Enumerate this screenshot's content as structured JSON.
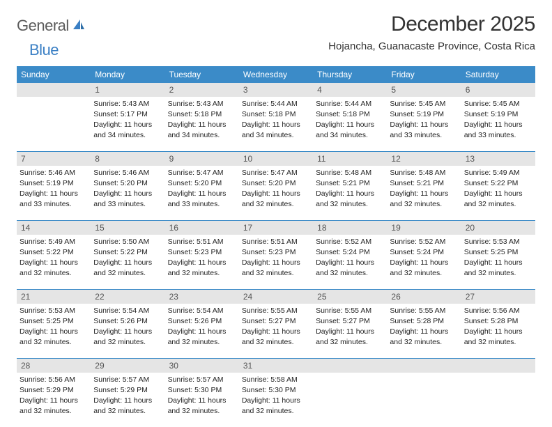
{
  "brand": {
    "part1": "General",
    "part2": "Blue"
  },
  "title": "December 2025",
  "location": "Hojancha, Guanacaste Province, Costa Rica",
  "colors": {
    "header_bg": "#3b8bc8",
    "header_text": "#ffffff",
    "daynum_bg": "#e5e5e5",
    "row_border": "#3b8bc8",
    "brand_gray": "#5a5a5a",
    "brand_blue": "#3a7fc4",
    "text": "#222222"
  },
  "day_labels": [
    "Sunday",
    "Monday",
    "Tuesday",
    "Wednesday",
    "Thursday",
    "Friday",
    "Saturday"
  ],
  "weeks": [
    [
      {
        "n": "",
        "sr": "",
        "ss": "",
        "dl": ""
      },
      {
        "n": "1",
        "sr": "Sunrise: 5:43 AM",
        "ss": "Sunset: 5:17 PM",
        "dl": "Daylight: 11 hours and 34 minutes."
      },
      {
        "n": "2",
        "sr": "Sunrise: 5:43 AM",
        "ss": "Sunset: 5:18 PM",
        "dl": "Daylight: 11 hours and 34 minutes."
      },
      {
        "n": "3",
        "sr": "Sunrise: 5:44 AM",
        "ss": "Sunset: 5:18 PM",
        "dl": "Daylight: 11 hours and 34 minutes."
      },
      {
        "n": "4",
        "sr": "Sunrise: 5:44 AM",
        "ss": "Sunset: 5:18 PM",
        "dl": "Daylight: 11 hours and 34 minutes."
      },
      {
        "n": "5",
        "sr": "Sunrise: 5:45 AM",
        "ss": "Sunset: 5:19 PM",
        "dl": "Daylight: 11 hours and 33 minutes."
      },
      {
        "n": "6",
        "sr": "Sunrise: 5:45 AM",
        "ss": "Sunset: 5:19 PM",
        "dl": "Daylight: 11 hours and 33 minutes."
      }
    ],
    [
      {
        "n": "7",
        "sr": "Sunrise: 5:46 AM",
        "ss": "Sunset: 5:19 PM",
        "dl": "Daylight: 11 hours and 33 minutes."
      },
      {
        "n": "8",
        "sr": "Sunrise: 5:46 AM",
        "ss": "Sunset: 5:20 PM",
        "dl": "Daylight: 11 hours and 33 minutes."
      },
      {
        "n": "9",
        "sr": "Sunrise: 5:47 AM",
        "ss": "Sunset: 5:20 PM",
        "dl": "Daylight: 11 hours and 33 minutes."
      },
      {
        "n": "10",
        "sr": "Sunrise: 5:47 AM",
        "ss": "Sunset: 5:20 PM",
        "dl": "Daylight: 11 hours and 32 minutes."
      },
      {
        "n": "11",
        "sr": "Sunrise: 5:48 AM",
        "ss": "Sunset: 5:21 PM",
        "dl": "Daylight: 11 hours and 32 minutes."
      },
      {
        "n": "12",
        "sr": "Sunrise: 5:48 AM",
        "ss": "Sunset: 5:21 PM",
        "dl": "Daylight: 11 hours and 32 minutes."
      },
      {
        "n": "13",
        "sr": "Sunrise: 5:49 AM",
        "ss": "Sunset: 5:22 PM",
        "dl": "Daylight: 11 hours and 32 minutes."
      }
    ],
    [
      {
        "n": "14",
        "sr": "Sunrise: 5:49 AM",
        "ss": "Sunset: 5:22 PM",
        "dl": "Daylight: 11 hours and 32 minutes."
      },
      {
        "n": "15",
        "sr": "Sunrise: 5:50 AM",
        "ss": "Sunset: 5:22 PM",
        "dl": "Daylight: 11 hours and 32 minutes."
      },
      {
        "n": "16",
        "sr": "Sunrise: 5:51 AM",
        "ss": "Sunset: 5:23 PM",
        "dl": "Daylight: 11 hours and 32 minutes."
      },
      {
        "n": "17",
        "sr": "Sunrise: 5:51 AM",
        "ss": "Sunset: 5:23 PM",
        "dl": "Daylight: 11 hours and 32 minutes."
      },
      {
        "n": "18",
        "sr": "Sunrise: 5:52 AM",
        "ss": "Sunset: 5:24 PM",
        "dl": "Daylight: 11 hours and 32 minutes."
      },
      {
        "n": "19",
        "sr": "Sunrise: 5:52 AM",
        "ss": "Sunset: 5:24 PM",
        "dl": "Daylight: 11 hours and 32 minutes."
      },
      {
        "n": "20",
        "sr": "Sunrise: 5:53 AM",
        "ss": "Sunset: 5:25 PM",
        "dl": "Daylight: 11 hours and 32 minutes."
      }
    ],
    [
      {
        "n": "21",
        "sr": "Sunrise: 5:53 AM",
        "ss": "Sunset: 5:25 PM",
        "dl": "Daylight: 11 hours and 32 minutes."
      },
      {
        "n": "22",
        "sr": "Sunrise: 5:54 AM",
        "ss": "Sunset: 5:26 PM",
        "dl": "Daylight: 11 hours and 32 minutes."
      },
      {
        "n": "23",
        "sr": "Sunrise: 5:54 AM",
        "ss": "Sunset: 5:26 PM",
        "dl": "Daylight: 11 hours and 32 minutes."
      },
      {
        "n": "24",
        "sr": "Sunrise: 5:55 AM",
        "ss": "Sunset: 5:27 PM",
        "dl": "Daylight: 11 hours and 32 minutes."
      },
      {
        "n": "25",
        "sr": "Sunrise: 5:55 AM",
        "ss": "Sunset: 5:27 PM",
        "dl": "Daylight: 11 hours and 32 minutes."
      },
      {
        "n": "26",
        "sr": "Sunrise: 5:55 AM",
        "ss": "Sunset: 5:28 PM",
        "dl": "Daylight: 11 hours and 32 minutes."
      },
      {
        "n": "27",
        "sr": "Sunrise: 5:56 AM",
        "ss": "Sunset: 5:28 PM",
        "dl": "Daylight: 11 hours and 32 minutes."
      }
    ],
    [
      {
        "n": "28",
        "sr": "Sunrise: 5:56 AM",
        "ss": "Sunset: 5:29 PM",
        "dl": "Daylight: 11 hours and 32 minutes."
      },
      {
        "n": "29",
        "sr": "Sunrise: 5:57 AM",
        "ss": "Sunset: 5:29 PM",
        "dl": "Daylight: 11 hours and 32 minutes."
      },
      {
        "n": "30",
        "sr": "Sunrise: 5:57 AM",
        "ss": "Sunset: 5:30 PM",
        "dl": "Daylight: 11 hours and 32 minutes."
      },
      {
        "n": "31",
        "sr": "Sunrise: 5:58 AM",
        "ss": "Sunset: 5:30 PM",
        "dl": "Daylight: 11 hours and 32 minutes."
      },
      {
        "n": "",
        "sr": "",
        "ss": "",
        "dl": ""
      },
      {
        "n": "",
        "sr": "",
        "ss": "",
        "dl": ""
      },
      {
        "n": "",
        "sr": "",
        "ss": "",
        "dl": ""
      }
    ]
  ]
}
